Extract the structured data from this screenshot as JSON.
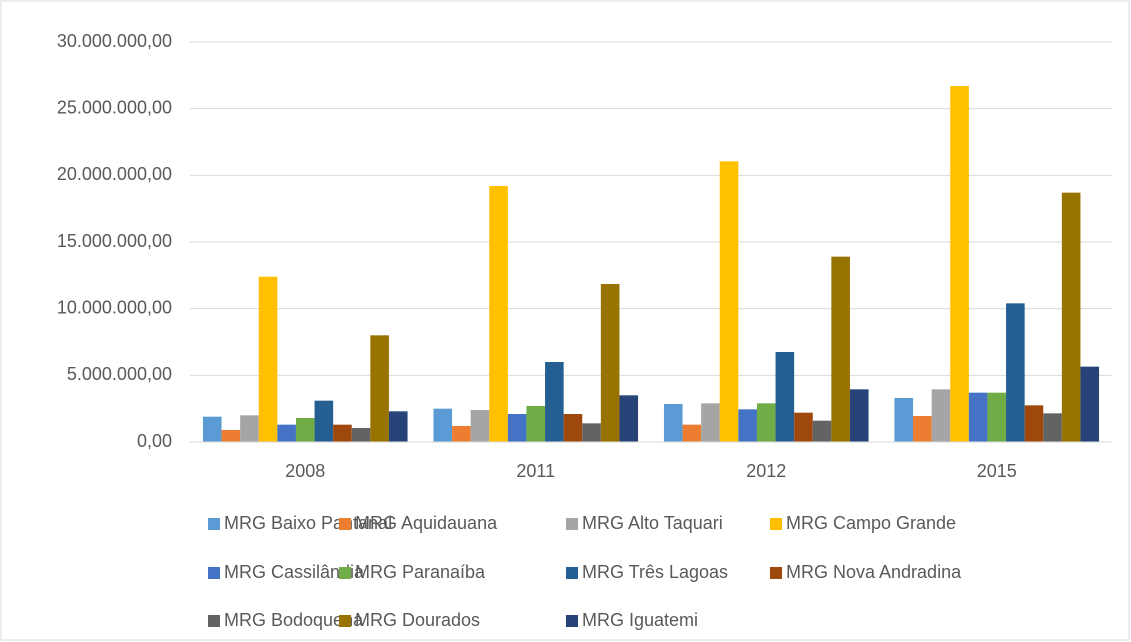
{
  "chart_data": {
    "type": "bar",
    "categories": [
      "2008",
      "2011",
      "2012",
      "2015"
    ],
    "series": [
      {
        "name": "MRG Baixo Pantanal",
        "color": "#5b9bd5",
        "values": [
          1900000,
          2500000,
          2850000,
          3300000
        ]
      },
      {
        "name": "MRG Aquidauana",
        "color": "#ed7d31",
        "values": [
          900000,
          1200000,
          1300000,
          1950000
        ]
      },
      {
        "name": "MRG Alto Taquari",
        "color": "#a5a5a5",
        "values": [
          2000000,
          2400000,
          2900000,
          3950000
        ]
      },
      {
        "name": "MRG Campo Grande",
        "color": "#ffc000",
        "values": [
          12400000,
          19200000,
          21050000,
          26700000
        ]
      },
      {
        "name": "MRG Cassilândia",
        "color": "#4472c4",
        "values": [
          1300000,
          2100000,
          2450000,
          3700000
        ]
      },
      {
        "name": "MRG Paranaíba",
        "color": "#70ad47",
        "values": [
          1800000,
          2700000,
          2900000,
          3700000
        ]
      },
      {
        "name": "MRG Três Lagoas",
        "color": "#255e91",
        "values": [
          3100000,
          6000000,
          6750000,
          10400000
        ]
      },
      {
        "name": "MRG Nova Andradina",
        "color": "#9e480e",
        "values": [
          1300000,
          2100000,
          2200000,
          2750000
        ]
      },
      {
        "name": "MRG Bodoquena",
        "color": "#636363",
        "values": [
          1050000,
          1400000,
          1600000,
          2150000
        ]
      },
      {
        "name": "MRG Dourados",
        "color": "#997300",
        "values": [
          8000000,
          11850000,
          13900000,
          18700000
        ]
      },
      {
        "name": "MRG Iguatemi",
        "color": "#264478",
        "values": [
          2300000,
          3500000,
          3950000,
          5650000
        ]
      }
    ],
    "ylim": [
      0,
      30000000
    ],
    "yticks": [
      {
        "value": 0,
        "label": "0,00"
      },
      {
        "value": 5000000,
        "label": "5.000.000,00"
      },
      {
        "value": 10000000,
        "label": "10.000.000,00"
      },
      {
        "value": 15000000,
        "label": "15.000.000,00"
      },
      {
        "value": 20000000,
        "label": "20.000.000,00"
      },
      {
        "value": 25000000,
        "label": "25.000.000,00"
      },
      {
        "value": 30000000,
        "label": "30.000.000,00"
      }
    ],
    "grid": true,
    "legend": "bottom"
  }
}
